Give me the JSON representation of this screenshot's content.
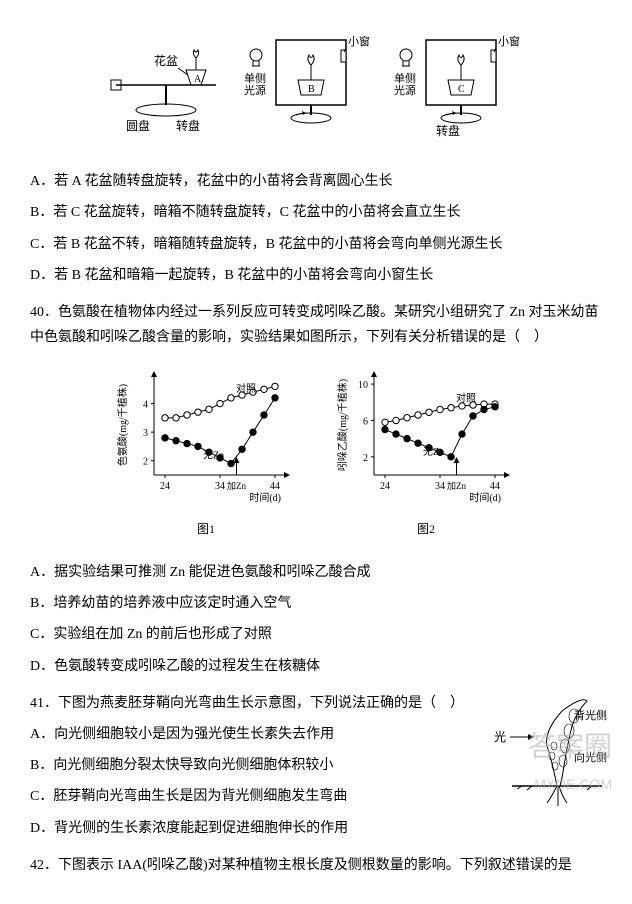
{
  "topDiagram": {
    "labels": {
      "huapen": "花盆",
      "yuanpan": "圆盘",
      "zhuanpan": "转盘",
      "dance": "单侧\n光源",
      "xiaochuang": "小窗",
      "A": "A",
      "B": "B",
      "C": "C"
    }
  },
  "q39opts": {
    "A": "A．若 A 花盆随转盘旋转，花盆中的小苗将会背离圆心生长",
    "B": "B．若 C 花盆旋转，暗箱不随转盘旋转，C 花盆中的小苗将会直立生长",
    "C": "C．若 B 花盆不转，暗箱随转盘旋转，B 花盆中的小苗将会弯向单侧光源生长",
    "D": "D．若 B 花盆和暗箱一起旋转，B 花盆中的小苗将会弯向小窗生长"
  },
  "q40": {
    "stem": "40．色氨酸在植物体内经过一系列反应可转变成吲哚乙酸。某研究小组研究了 Zn 对玉米幼苗中色氨酸和吲哚乙酸含量的影响，实验结果如图所示，下列有关分析错误的是（　）",
    "chart1": {
      "ylabel": "色氨酸(mg/千植株)",
      "xlabel": "时间(d)",
      "caption": "图1",
      "legend": {
        "ctrl": "对照",
        "noZn": "无Zn",
        "addZn": "加Zn"
      },
      "xTicks": [
        24,
        34,
        44
      ],
      "yTicks": [
        2,
        3,
        4
      ],
      "xRange": [
        22,
        46
      ],
      "yRange": [
        1.5,
        5.0
      ],
      "ctrlSeries": [
        [
          24,
          3.5
        ],
        [
          26,
          3.5
        ],
        [
          28,
          3.6
        ],
        [
          30,
          3.7
        ],
        [
          32,
          3.8
        ],
        [
          34,
          4.0
        ],
        [
          36,
          4.2
        ],
        [
          38,
          4.3
        ],
        [
          40,
          4.4
        ],
        [
          42,
          4.5
        ],
        [
          44,
          4.6
        ]
      ],
      "noZnSeries": [
        [
          24,
          2.8
        ],
        [
          26,
          2.7
        ],
        [
          28,
          2.6
        ],
        [
          30,
          2.5
        ],
        [
          32,
          2.3
        ],
        [
          34,
          2.1
        ],
        [
          36,
          1.9
        ],
        [
          38,
          2.4
        ],
        [
          40,
          3.0
        ],
        [
          42,
          3.6
        ],
        [
          44,
          4.2
        ]
      ],
      "arrowX": 37,
      "colors": {
        "line": "#000000",
        "marker_open": "#ffffff",
        "marker_fill": "#000000",
        "axis": "#000000"
      }
    },
    "chart2": {
      "ylabel": "吲哚乙酸(mg/千植株)",
      "xlabel": "时间(d)",
      "caption": "图2",
      "legend": {
        "ctrl": "对照",
        "noZn": "无Zn",
        "addZn": "加Zn"
      },
      "xTicks": [
        24,
        34,
        44
      ],
      "yTicks": [
        2,
        6,
        10
      ],
      "xRange": [
        22,
        46
      ],
      "yRange": [
        0,
        11
      ],
      "ctrlSeries": [
        [
          24,
          5.8
        ],
        [
          26,
          6.0
        ],
        [
          28,
          6.3
        ],
        [
          30,
          6.6
        ],
        [
          32,
          6.9
        ],
        [
          34,
          7.2
        ],
        [
          36,
          7.4
        ],
        [
          38,
          7.6
        ],
        [
          40,
          7.7
        ],
        [
          42,
          7.8
        ],
        [
          44,
          7.8
        ]
      ],
      "noZnSeries": [
        [
          24,
          5.0
        ],
        [
          26,
          4.5
        ],
        [
          28,
          4.0
        ],
        [
          30,
          3.5
        ],
        [
          32,
          3.0
        ],
        [
          34,
          2.5
        ],
        [
          36,
          2.0
        ],
        [
          38,
          4.5
        ],
        [
          40,
          6.5
        ],
        [
          42,
          7.2
        ],
        [
          44,
          7.5
        ]
      ],
      "arrowX": 37,
      "colors": {
        "line": "#000000",
        "marker_open": "#ffffff",
        "marker_fill": "#000000",
        "axis": "#000000"
      }
    },
    "opts": {
      "A": "A．据实验结果可推测 Zn 能促进色氨酸和吲哚乙酸合成",
      "B": "B．培养幼苗的培养液中应该定时通入空气",
      "C": "C．实验组在加 Zn 的前后也形成了对照",
      "D": "D．色氨酸转变成吲哚乙酸的过程发生在核糖体"
    }
  },
  "q41": {
    "stem": "41．下图为燕麦胚芽鞘向光弯曲生长示意图，下列说法正确的是（　）",
    "opts": {
      "A": "A．向光侧细胞较小是因为强光使生长素失去作用",
      "B": "B．向光侧细胞分裂太快导致向光侧细胞体积较小",
      "C": "C．胚芽鞘向光弯曲生长是因为背光侧细胞发生弯曲",
      "D": "D．背光侧的生长素浓度能起到促进细胞伸长的作用"
    },
    "fig": {
      "guang": "光",
      "beiguangce": "背光侧",
      "xiangguangce": "向光侧"
    }
  },
  "q42": {
    "stem": "42．下图表示 IAA(吲哚乙酸)对某种植物主根长度及侧根数量的影响。下列叙述错误的是"
  },
  "watermark": {
    "main": "答案圈",
    "sub": "MXQE.COM"
  }
}
